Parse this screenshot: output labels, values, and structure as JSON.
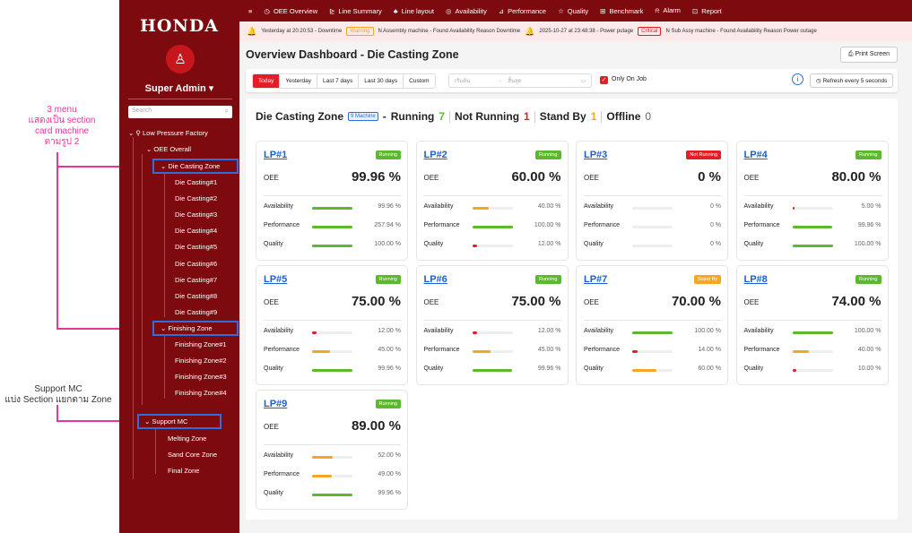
{
  "annotations": {
    "menu_note": [
      "3 menu",
      "แสดงเป็น section",
      "card machine",
      "ตามรูป 2"
    ],
    "support_note": [
      "Support MC",
      "แบ่ง Section แยกตาม Zone"
    ]
  },
  "sidebar": {
    "logo": "HONDA",
    "user": "Super Admin",
    "search_placeholder": "Search",
    "tree": {
      "factory": "Low Pressure Factory",
      "oee_overall": "OEE Overall",
      "die_zone": "Die Casting Zone",
      "die_items": [
        "Die Casting#1",
        "Die Casting#2",
        "Die Casting#3",
        "Die Casting#4",
        "Die Casting#5",
        "Die Casting#6",
        "Die Casting#7",
        "Die Casting#8",
        "Die Casting#9"
      ],
      "finishing_zone": "Finishing Zone",
      "finishing_items": [
        "Finishing Zone#1",
        "Finishing Zone#2",
        "Finishing Zone#3",
        "Finishing Zone#4"
      ],
      "support_mc": "Support MC",
      "support_items": [
        "Melting Zone",
        "Sand Core Zone",
        "Final Zone"
      ]
    }
  },
  "topnav": [
    {
      "icon": "≡",
      "label": ""
    },
    {
      "icon": "◷",
      "label": "OEE Overview"
    },
    {
      "icon": "⊵",
      "label": "Line Summary"
    },
    {
      "icon": "♣",
      "label": "Line layout"
    },
    {
      "icon": "◎",
      "label": "Availability"
    },
    {
      "icon": "⊿",
      "label": "Performance"
    },
    {
      "icon": "☆",
      "label": "Quality"
    },
    {
      "icon": "⊞",
      "label": "Benchmark"
    },
    {
      "icon": "⍾",
      "label": "Alarm"
    },
    {
      "icon": "⊡",
      "label": "Report"
    }
  ],
  "alerts": [
    {
      "time": "Yesterday at 20:20:53 - Downtime",
      "level": "Warning",
      "msg": "N Assembly machine - Found Availability Reason Downtime"
    },
    {
      "time": "2025-10-27 at 23:48:38 - Power putage",
      "level": "Critical",
      "msg": "N Sub Assy machine - Found Availability Reason Power outage"
    }
  ],
  "page": {
    "title": "Overview Dashboard - Die Casting Zone",
    "print_label": "Print Screen"
  },
  "filters": {
    "ranges": [
      "Today",
      "Yesterday",
      "Last 7 days",
      "Last 30 days",
      "Custom"
    ],
    "active": "Today",
    "date_start": "เริ่มต้น",
    "date_arrow": "→",
    "date_end": "สิ้นสุด",
    "only_on_job": "Only On Job",
    "refresh": "Refresh every 5 seconds"
  },
  "zone": {
    "name": "Die Casting Zone",
    "machines": "9 Machine",
    "running_label": "Running",
    "running": "7",
    "not_running_label": "Not Running",
    "not_running": "1",
    "standby_label": "Stand By",
    "standby": "1",
    "offline_label": "Offline",
    "offline": "0"
  },
  "colors": {
    "running": "#5cb82e",
    "not_running": "#e31e24",
    "stand_by": "#f5a623",
    "bar_green": "#5cb82e",
    "bar_orange": "#f5a623",
    "bar_red": "#e31e24"
  },
  "metric_labels": {
    "oee": "OEE",
    "availability": "Availability",
    "performance": "Performance",
    "quality": "Quality"
  },
  "cards": [
    {
      "name": "LP#1",
      "status": "Running",
      "oee": "99.96 %",
      "availability": {
        "value": "99.96 %",
        "pct": 99.96,
        "color": "green"
      },
      "performance": {
        "value": "257.94 %",
        "pct": 100,
        "color": "green"
      },
      "quality": {
        "value": "100.00 %",
        "pct": 100,
        "color": "green"
      }
    },
    {
      "name": "LP#2",
      "status": "Running",
      "oee": "60.00 %",
      "availability": {
        "value": "40.00 %",
        "pct": 40,
        "color": "orange"
      },
      "performance": {
        "value": "100.00 %",
        "pct": 100,
        "color": "green"
      },
      "quality": {
        "value": "12.00 %",
        "pct": 12,
        "color": "red"
      }
    },
    {
      "name": "LP#3",
      "status": "Not Running",
      "oee": "0 %",
      "availability": {
        "value": "0 %",
        "pct": 0,
        "color": "green"
      },
      "performance": {
        "value": "0 %",
        "pct": 0,
        "color": "green"
      },
      "quality": {
        "value": "0 %",
        "pct": 0,
        "color": "green"
      }
    },
    {
      "name": "LP#4",
      "status": "Running",
      "oee": "80.00 %",
      "availability": {
        "value": "5.00 %",
        "pct": 5,
        "color": "red"
      },
      "performance": {
        "value": "99.96 %",
        "pct": 99.96,
        "color": "green"
      },
      "quality": {
        "value": "100.00 %",
        "pct": 100,
        "color": "green"
      }
    },
    {
      "name": "LP#5",
      "status": "Running",
      "oee": "75.00 %",
      "availability": {
        "value": "12.00 %",
        "pct": 12,
        "color": "red"
      },
      "performance": {
        "value": "45.00 %",
        "pct": 45,
        "color": "orange"
      },
      "quality": {
        "value": "99.96 %",
        "pct": 99.96,
        "color": "green"
      }
    },
    {
      "name": "LP#6",
      "status": "Running",
      "oee": "75.00 %",
      "availability": {
        "value": "12.00 %",
        "pct": 12,
        "color": "red"
      },
      "performance": {
        "value": "45.00 %",
        "pct": 45,
        "color": "orange"
      },
      "quality": {
        "value": "99.96 %",
        "pct": 99.96,
        "color": "green"
      }
    },
    {
      "name": "LP#7",
      "status": "Stand By",
      "oee": "70.00 %",
      "availability": {
        "value": "100.00 %",
        "pct": 100,
        "color": "green"
      },
      "performance": {
        "value": "14.00 %",
        "pct": 14,
        "color": "red"
      },
      "quality": {
        "value": "60.00 %",
        "pct": 60,
        "color": "orange"
      }
    },
    {
      "name": "LP#8",
      "status": "Running",
      "oee": "74.00 %",
      "availability": {
        "value": "100.00 %",
        "pct": 100,
        "color": "green"
      },
      "performance": {
        "value": "40.00 %",
        "pct": 40,
        "color": "orange"
      },
      "quality": {
        "value": "10.00 %",
        "pct": 10,
        "color": "red"
      }
    },
    {
      "name": "LP#9",
      "status": "Running",
      "oee": "89.00 %",
      "availability": {
        "value": "52.00 %",
        "pct": 52,
        "color": "orange"
      },
      "performance": {
        "value": "49.00 %",
        "pct": 49,
        "color": "orange"
      },
      "quality": {
        "value": "99.96 %",
        "pct": 99.96,
        "color": "green"
      }
    }
  ]
}
